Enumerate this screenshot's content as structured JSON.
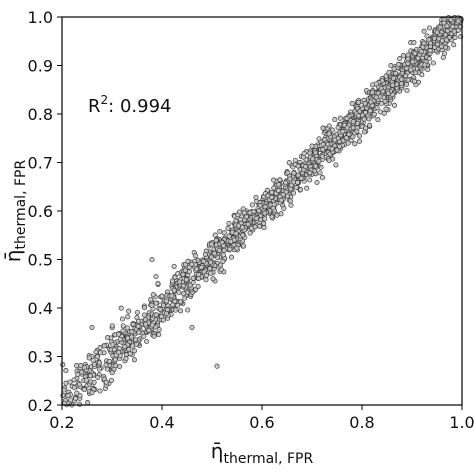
{
  "chart_data": {
    "type": "scatter",
    "title": "",
    "xlabel": {
      "symbol": "η̄",
      "subscript": "thermal, FPR"
    },
    "ylabel": {
      "symbol": "η̄",
      "subscript": "thermal, FPR"
    },
    "xlim": [
      0.2,
      1.0
    ],
    "ylim": [
      0.2,
      1.0
    ],
    "xticks": [
      "0.2",
      "0.4",
      "0.6",
      "0.8",
      "1.0"
    ],
    "yticks": [
      "0.2",
      "0.3",
      "0.4",
      "0.5",
      "0.6",
      "0.7",
      "0.8",
      "0.9",
      "1.0"
    ],
    "annotation": {
      "base": "R",
      "superscript": "2",
      "text": ": 0.994"
    },
    "grid": false,
    "marker": {
      "fill": "#c8c8c8",
      "edge": "#3a3a3a"
    },
    "points_estimate": {
      "trend": "y ≈ x",
      "density": "dense band along the diagonal from 0.2 to 1.0",
      "sample": [
        [
          0.21,
          0.22
        ],
        [
          0.23,
          0.27
        ],
        [
          0.25,
          0.24
        ],
        [
          0.27,
          0.3
        ],
        [
          0.29,
          0.28
        ],
        [
          0.31,
          0.33
        ],
        [
          0.33,
          0.31
        ],
        [
          0.35,
          0.38
        ],
        [
          0.37,
          0.35
        ],
        [
          0.39,
          0.41
        ],
        [
          0.41,
          0.4
        ],
        [
          0.43,
          0.45
        ],
        [
          0.45,
          0.44
        ],
        [
          0.47,
          0.49
        ],
        [
          0.49,
          0.48
        ],
        [
          0.51,
          0.52
        ],
        [
          0.53,
          0.54
        ],
        [
          0.55,
          0.55
        ],
        [
          0.57,
          0.58
        ],
        [
          0.59,
          0.59
        ],
        [
          0.61,
          0.62
        ],
        [
          0.63,
          0.63
        ],
        [
          0.65,
          0.66
        ],
        [
          0.67,
          0.67
        ],
        [
          0.69,
          0.7
        ],
        [
          0.71,
          0.71
        ],
        [
          0.73,
          0.74
        ],
        [
          0.75,
          0.75
        ],
        [
          0.77,
          0.78
        ],
        [
          0.79,
          0.79
        ],
        [
          0.81,
          0.82
        ],
        [
          0.83,
          0.83
        ],
        [
          0.85,
          0.86
        ],
        [
          0.87,
          0.87
        ],
        [
          0.89,
          0.9
        ],
        [
          0.91,
          0.91
        ],
        [
          0.93,
          0.94
        ],
        [
          0.95,
          0.95
        ],
        [
          0.97,
          0.97
        ],
        [
          0.99,
          0.99
        ],
        [
          0.51,
          0.28
        ],
        [
          0.26,
          0.36
        ],
        [
          0.22,
          0.2
        ],
        [
          0.46,
          0.36
        ],
        [
          0.38,
          0.5
        ]
      ]
    }
  }
}
